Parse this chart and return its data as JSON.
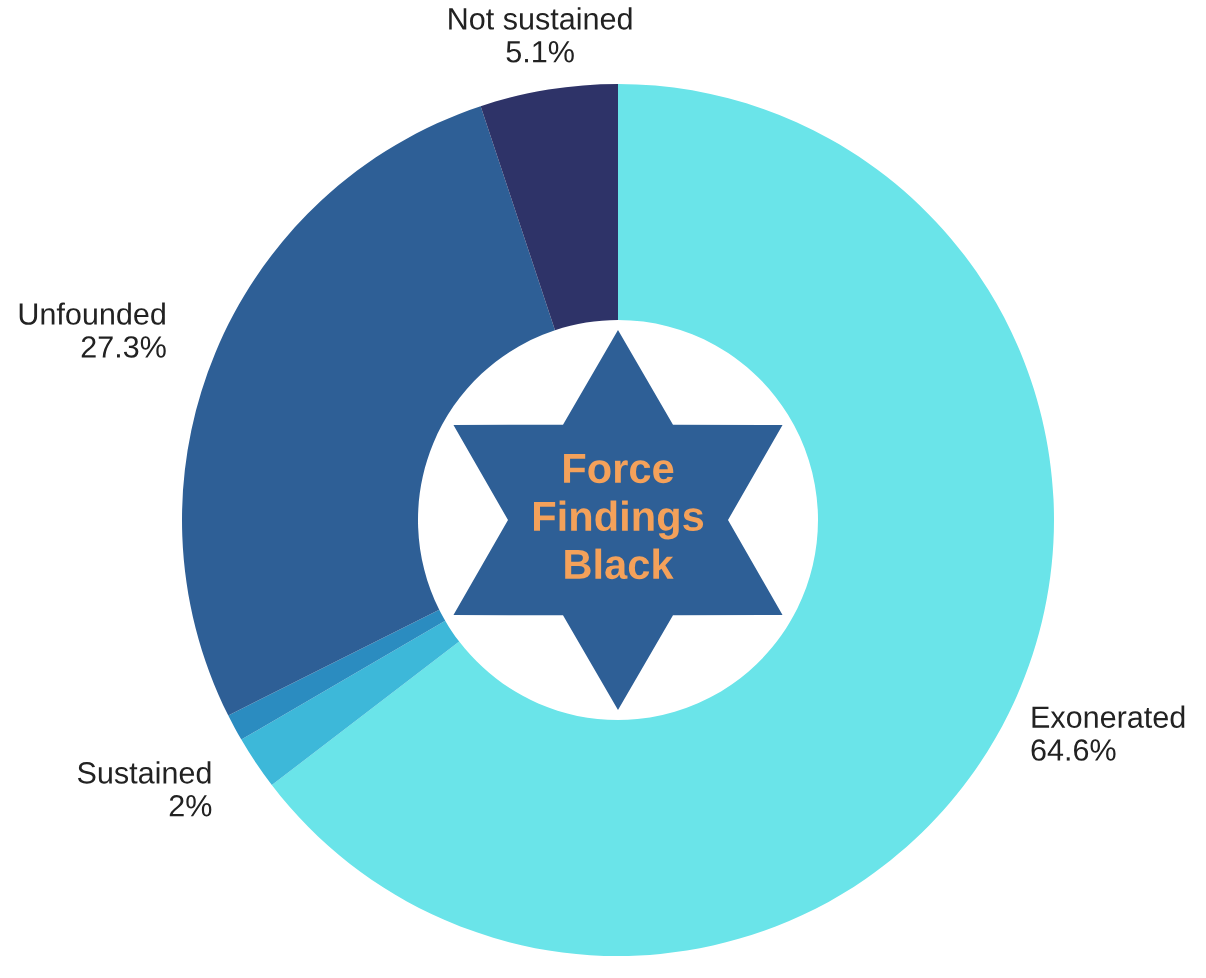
{
  "chart_data": {
    "type": "donut",
    "title": "Force Findings Black",
    "categories": [
      "Exonerated",
      "Sustained",
      null,
      "Unfounded",
      "Not sustained"
    ],
    "values": [
      64.6,
      2,
      1.0,
      27.3,
      5.1
    ],
    "colors": [
      "#6ae4e9",
      "#3db8d9",
      "#2b8cc0",
      "#2e5f96",
      "#2e3368"
    ],
    "value_labels": [
      "64.6%",
      "2%",
      null,
      "27.3%",
      "5.1%"
    ]
  }
}
